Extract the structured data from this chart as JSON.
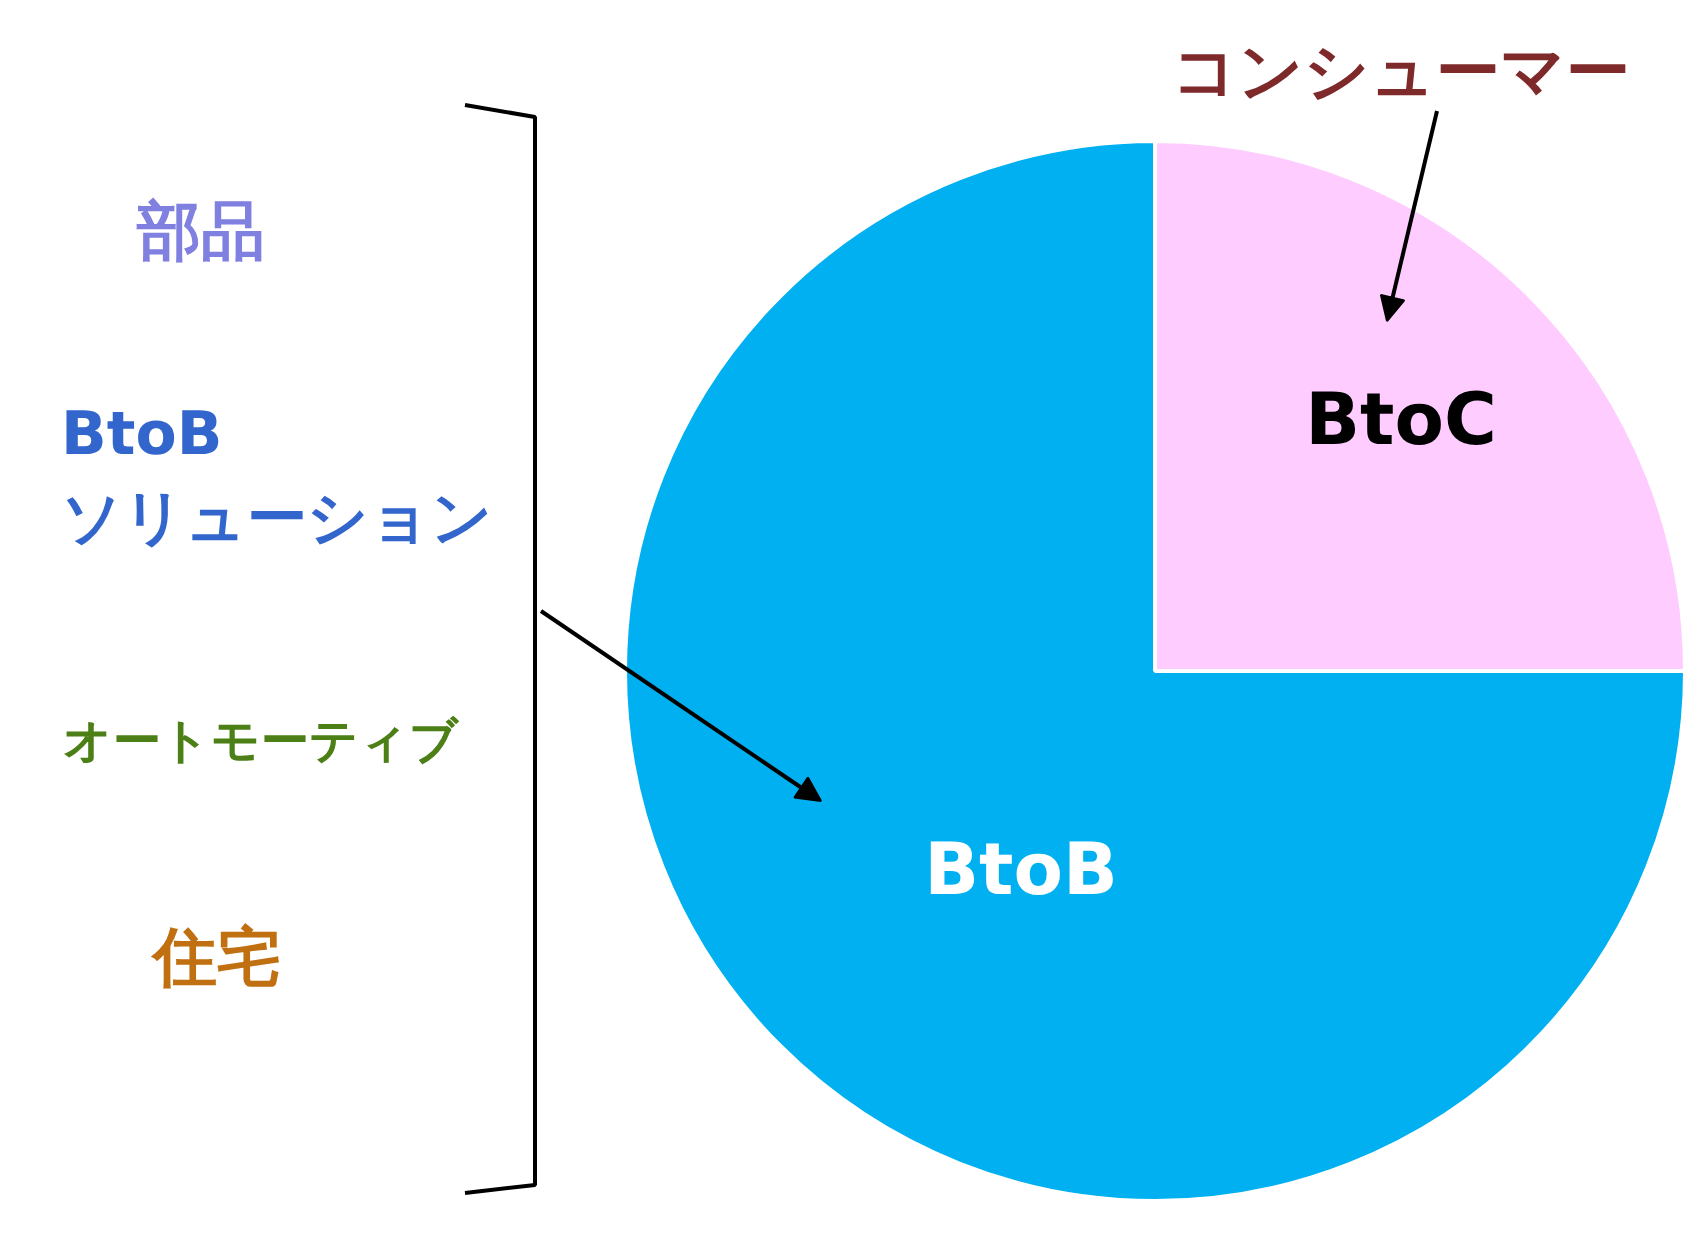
{
  "chart_data": {
    "type": "pie",
    "categories": [
      "BtoC",
      "BtoB"
    ],
    "values": [
      25,
      75
    ],
    "colors": [
      "#ffccff",
      "#00b0f0"
    ],
    "data_labels": false,
    "annotations": [
      "部品",
      "BtoB\nソリューション",
      "オートモーティブ",
      "住宅",
      "コンシューマー"
    ]
  }
}
